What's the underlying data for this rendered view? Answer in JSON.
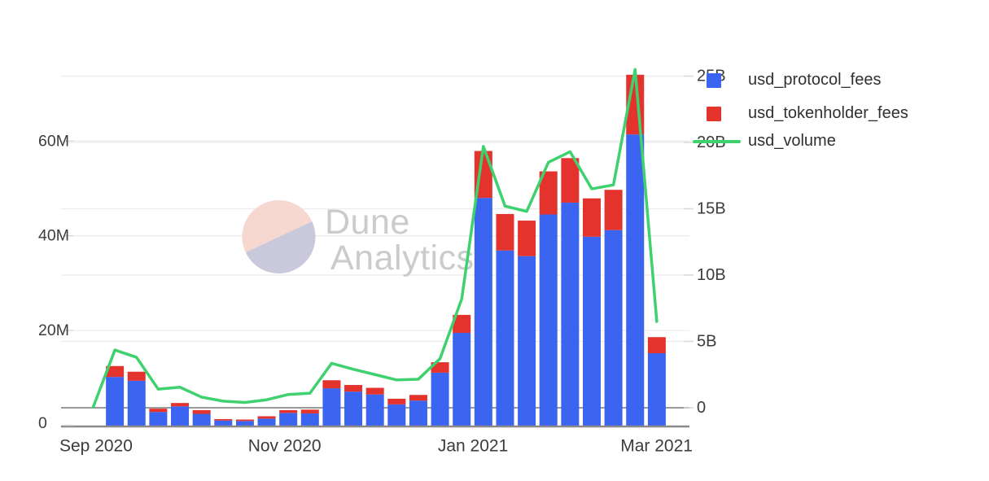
{
  "watermark": {
    "line1": "Dune",
    "line2": "Analytics"
  },
  "colors": {
    "protocol_fees_bar": "#3B64F0",
    "tokenholder_fees_bar": "#E4332D",
    "volume_line": "#3ED16E",
    "gridline": "#ECECEC",
    "zero_line": "#9A9A9A",
    "baseline": "#8A8A8A",
    "axis_text": "#3C3C3C",
    "legend_text": "#303030",
    "watermark_text": "#CBCBCB",
    "watermark_circle_top": "#F7D8D0",
    "watermark_circle_bottom": "#C9C9DB"
  },
  "chart_data": {
    "type": "combo-stacked-bar-line",
    "x_count": 27,
    "x_unit": "week",
    "x_ticks": [
      {
        "label": "Sep 2020",
        "index": 0.13
      },
      {
        "label": "Nov 2020",
        "index": 8.83
      },
      {
        "label": "Jan 2021",
        "index": 17.52
      },
      {
        "label": "Mar 2021",
        "index": 25.99
      }
    ],
    "series": [
      {
        "name": "usd_protocol_fees",
        "type": "bar",
        "stack": "fees",
        "axis": "left",
        "unit": "M USD",
        "color": "#3B64F0",
        "values": [
          0,
          10.2,
          9.4,
          2.8,
          4.0,
          2.4,
          1.0,
          0.9,
          1.4,
          2.6,
          2.5,
          7.8,
          7.1,
          6.5,
          4.4,
          5.2,
          11.1,
          19.5,
          48.0,
          36.9,
          35.7,
          44.5,
          47.0,
          39.8,
          41.2,
          61.4,
          15.2
        ]
      },
      {
        "name": "usd_tokenholder_fees",
        "type": "bar",
        "stack": "fees",
        "axis": "left",
        "unit": "M USD",
        "color": "#E4332D",
        "values": [
          0,
          2.3,
          1.9,
          0.7,
          0.7,
          0.8,
          0.3,
          0.3,
          0.5,
          0.6,
          0.8,
          1.7,
          1.4,
          1.4,
          1.2,
          1.2,
          2.2,
          3.8,
          9.9,
          7.7,
          7.5,
          9.1,
          9.4,
          8.1,
          8.5,
          12.6,
          3.4
        ]
      },
      {
        "name": "usd_volume",
        "type": "line",
        "axis": "right",
        "unit": "B USD",
        "color": "#3ED16E",
        "values": [
          0.05,
          4.35,
          3.8,
          1.4,
          1.55,
          0.8,
          0.5,
          0.4,
          0.6,
          1.0,
          1.1,
          3.35,
          2.9,
          2.5,
          2.1,
          2.15,
          3.7,
          8.2,
          19.7,
          15.2,
          14.8,
          18.5,
          19.3,
          16.5,
          16.8,
          25.5,
          6.5
        ]
      }
    ],
    "left_axis": {
      "range": [
        0,
        75.2
      ],
      "ticks": [
        {
          "label": "0",
          "value": 0
        },
        {
          "label": "20M",
          "value": 20
        },
        {
          "label": "40M",
          "value": 40
        },
        {
          "label": "60M",
          "value": 60
        }
      ]
    },
    "right_axis": {
      "range": [
        0,
        25.6
      ],
      "ticks": [
        {
          "label": "0",
          "value": 0
        },
        {
          "label": "5B",
          "value": 5
        },
        {
          "label": "10B",
          "value": 10
        },
        {
          "label": "15B",
          "value": 15
        },
        {
          "label": "20B",
          "value": 20
        },
        {
          "label": "25B",
          "value": 25
        }
      ]
    },
    "grid": true,
    "legend_position": "top-right"
  }
}
